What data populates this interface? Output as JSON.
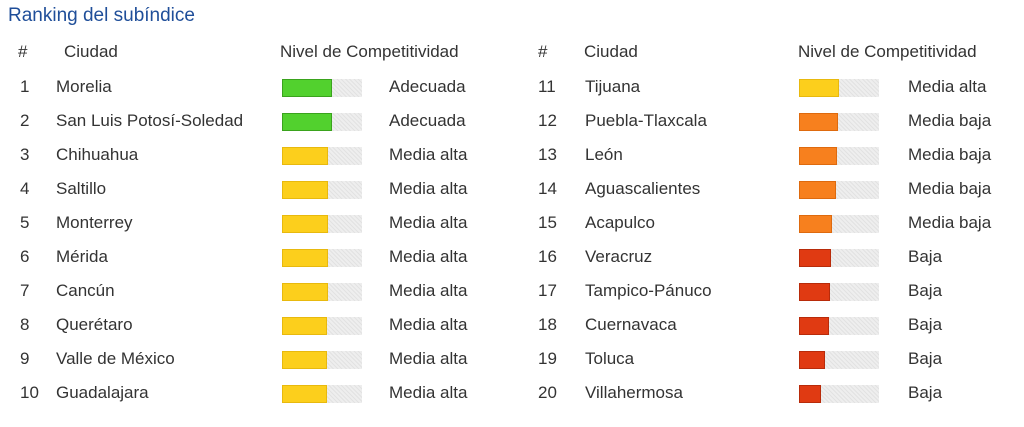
{
  "title": "Ranking del subíndice",
  "headers": {
    "rank": "#",
    "city": "Ciudad",
    "level": "Nivel de Competitividad"
  },
  "colors": {
    "Adecuada": "#52d12e",
    "Media alta": "#fccf1c",
    "Media baja": "#f7801e",
    "Baja": "#e03a12"
  },
  "left_rows": [
    {
      "rank": "1",
      "city": "Morelia",
      "level": "Adecuada",
      "fill": 0.63
    },
    {
      "rank": "2",
      "city": "San Luis Potosí-Soledad",
      "level": "Adecuada",
      "fill": 0.63
    },
    {
      "rank": "3",
      "city": "Chihuahua",
      "level": "Media alta",
      "fill": 0.58
    },
    {
      "rank": "4",
      "city": "Saltillo",
      "level": "Media alta",
      "fill": 0.58
    },
    {
      "rank": "5",
      "city": "Monterrey",
      "level": "Media alta",
      "fill": 0.58
    },
    {
      "rank": "6",
      "city": "Mérida",
      "level": "Media alta",
      "fill": 0.57
    },
    {
      "rank": "7",
      "city": "Cancún",
      "level": "Media alta",
      "fill": 0.57
    },
    {
      "rank": "8",
      "city": "Querétaro",
      "level": "Media alta",
      "fill": 0.56
    },
    {
      "rank": "9",
      "city": "Valle de México",
      "level": "Media alta",
      "fill": 0.56
    },
    {
      "rank": "10",
      "city": "Guadalajara",
      "level": "Media alta",
      "fill": 0.56
    }
  ],
  "right_rows": [
    {
      "rank": "11",
      "city": "Tijuana",
      "level": "Media alta",
      "fill": 0.5
    },
    {
      "rank": "12",
      "city": "Puebla-Tlaxcala",
      "level": "Media baja",
      "fill": 0.49
    },
    {
      "rank": "13",
      "city": "León",
      "level": "Media baja",
      "fill": 0.47
    },
    {
      "rank": "14",
      "city": "Aguascalientes",
      "level": "Media baja",
      "fill": 0.46
    },
    {
      "rank": "15",
      "city": "Acapulco",
      "level": "Media baja",
      "fill": 0.41
    },
    {
      "rank": "16",
      "city": "Veracruz",
      "level": "Baja",
      "fill": 0.4
    },
    {
      "rank": "17",
      "city": "Tampico-Pánuco",
      "level": "Baja",
      "fill": 0.39
    },
    {
      "rank": "18",
      "city": "Cuernavaca",
      "level": "Baja",
      "fill": 0.37
    },
    {
      "rank": "19",
      "city": "Toluca",
      "level": "Baja",
      "fill": 0.32
    },
    {
      "rank": "20",
      "city": "Villahermosa",
      "level": "Baja",
      "fill": 0.28
    }
  ]
}
